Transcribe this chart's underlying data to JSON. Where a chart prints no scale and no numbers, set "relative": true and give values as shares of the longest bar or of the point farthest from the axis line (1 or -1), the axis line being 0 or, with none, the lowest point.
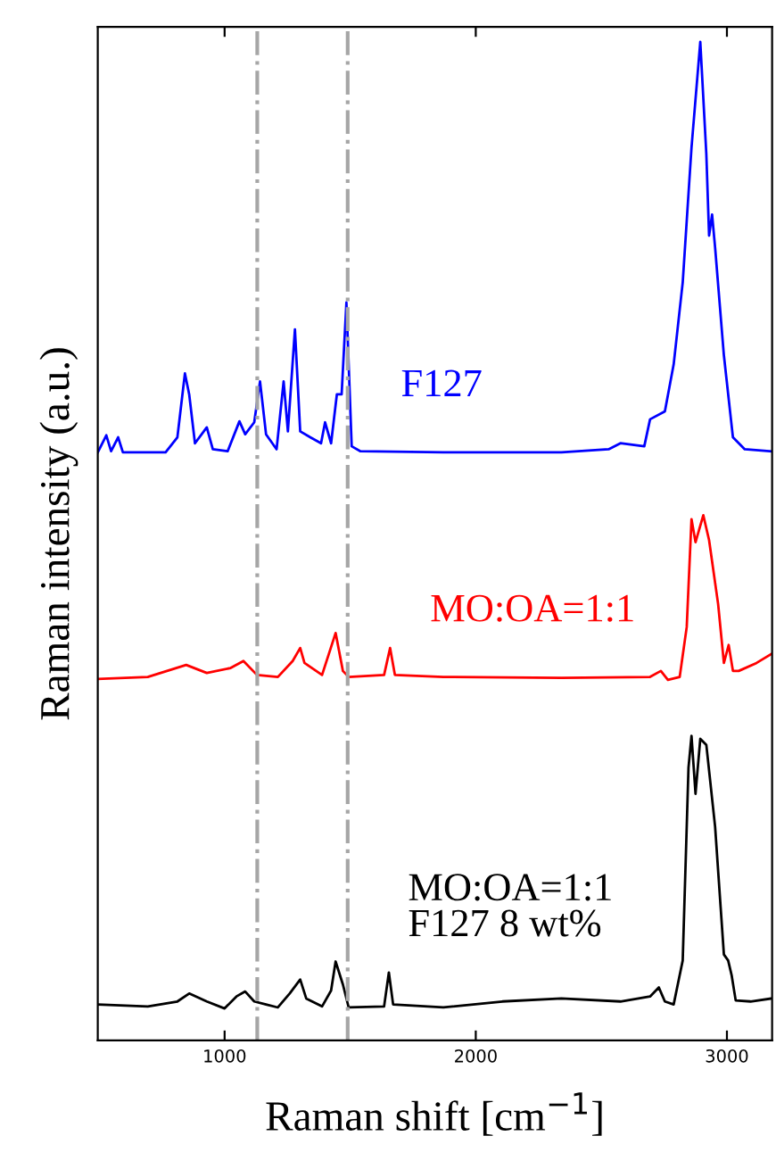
{
  "chart_data": {
    "type": "line",
    "relative": true,
    "xlabel": "Raman shift [cm$^{−1}$]",
    "ylabel": "Raman intensity (a.u.)",
    "xlim": [
      495,
      3180
    ],
    "xticks": [
      1000,
      2000,
      3000
    ],
    "legend": false,
    "grid": false,
    "line_style": "solid",
    "marker": "none",
    "series": [
      {
        "name": "F127",
        "color": "#0000ff",
        "x": [
          495,
          529,
          548,
          576,
          595,
          765,
          812,
          842,
          859,
          882,
          929,
          953,
          1012,
          1059,
          1082,
          1118,
          1141,
          1165,
          1207,
          1235,
          1252,
          1280,
          1301,
          1341,
          1384,
          1400,
          1424,
          1447,
          1466,
          1485,
          1506,
          1541,
          1871,
          2106,
          2341,
          2529,
          2576,
          2671,
          2694,
          2753,
          2788,
          2824,
          2859,
          2894,
          2918,
          2929,
          2941,
          2953,
          2988,
          3024,
          3071,
          3177
        ],
        "values": [
          0.589,
          0.606,
          0.59,
          0.604,
          0.589,
          0.589,
          0.604,
          0.668,
          0.647,
          0.598,
          0.614,
          0.592,
          0.59,
          0.62,
          0.607,
          0.619,
          0.66,
          0.607,
          0.592,
          0.66,
          0.61,
          0.712,
          0.61,
          0.604,
          0.598,
          0.619,
          0.598,
          0.647,
          0.647,
          0.739,
          0.595,
          0.59,
          0.589,
          0.589,
          0.589,
          0.592,
          0.598,
          0.595,
          0.622,
          0.63,
          0.677,
          0.759,
          0.894,
          1.0,
          0.888,
          0.806,
          0.827,
          0.794,
          0.686,
          0.604,
          0.592,
          0.59
        ]
      },
      {
        "name": "MO:OA=1:1",
        "color": "#ff0000",
        "x": [
          495,
          694,
          847,
          929,
          1024,
          1075,
          1129,
          1212,
          1271,
          1301,
          1318,
          1388,
          1442,
          1471,
          1494,
          1635,
          1659,
          1678,
          1871,
          2341,
          2694,
          2737,
          2765,
          2812,
          2840,
          2859,
          2875,
          2906,
          2929,
          2965,
          2988,
          3007,
          3024,
          3047,
          3118,
          3177
        ],
        "values": [
          0.362,
          0.364,
          0.376,
          0.368,
          0.373,
          0.38,
          0.366,
          0.364,
          0.38,
          0.393,
          0.378,
          0.366,
          0.408,
          0.37,
          0.364,
          0.366,
          0.393,
          0.366,
          0.364,
          0.363,
          0.364,
          0.37,
          0.361,
          0.364,
          0.414,
          0.522,
          0.499,
          0.526,
          0.501,
          0.437,
          0.378,
          0.396,
          0.37,
          0.37,
          0.378,
          0.387
        ]
      },
      {
        "name": "MO:OA=1:1\nF127 8 wt%",
        "color": "#000000",
        "x": [
          495,
          694,
          812,
          859,
          929,
          1000,
          1047,
          1082,
          1118,
          1165,
          1212,
          1259,
          1301,
          1325,
          1388,
          1424,
          1442,
          1471,
          1494,
          1635,
          1654,
          1671,
          1871,
          2106,
          2341,
          2576,
          2694,
          2729,
          2753,
          2788,
          2824,
          2847,
          2859,
          2875,
          2894,
          2918,
          2953,
          2988,
          3005,
          3019,
          3035,
          3094,
          3177
        ],
        "values": [
          0.036,
          0.034,
          0.039,
          0.047,
          0.039,
          0.032,
          0.044,
          0.049,
          0.039,
          0.036,
          0.033,
          0.047,
          0.061,
          0.042,
          0.034,
          0.05,
          0.079,
          0.056,
          0.033,
          0.034,
          0.068,
          0.036,
          0.033,
          0.039,
          0.042,
          0.039,
          0.044,
          0.053,
          0.039,
          0.036,
          0.08,
          0.273,
          0.305,
          0.247,
          0.302,
          0.296,
          0.214,
          0.086,
          0.08,
          0.065,
          0.04,
          0.039,
          0.042
        ]
      }
    ],
    "ref_lines": [
      {
        "axis": "x",
        "value": 1130,
        "color": "#a6a6a6",
        "line_style": "dashdot"
      },
      {
        "axis": "x",
        "value": 1490,
        "color": "#a6a6a6",
        "line_style": "dashdot"
      }
    ]
  }
}
